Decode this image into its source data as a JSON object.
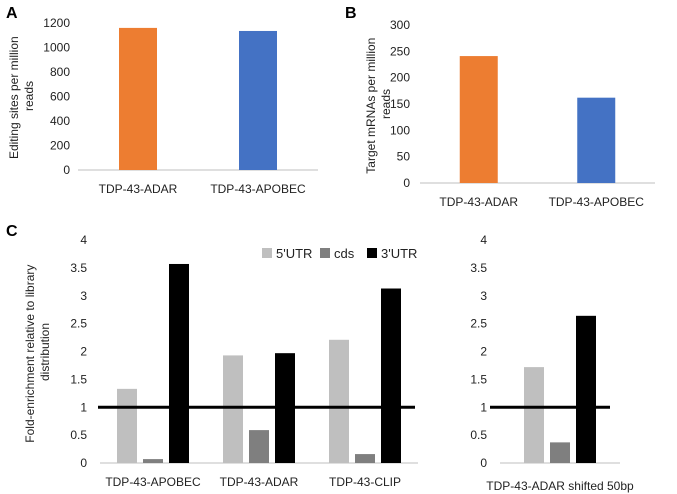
{
  "panels": {
    "A": "A",
    "B": "B",
    "C": "C"
  },
  "colors": {
    "adar": "#ED7D31",
    "apobec": "#4472C4",
    "utr5": "#BFBFBF",
    "cds": "#7F7F7F",
    "utr3": "#000000",
    "axis": "#BFBFBF"
  },
  "chart_data": [
    {
      "id": "A",
      "type": "bar",
      "ylabel_lines": [
        "Editing sites per million",
        "reads"
      ],
      "categories": [
        "TDP-43-ADAR",
        "TDP-43-APOBEC"
      ],
      "values": [
        1160,
        1135
      ],
      "ylim": [
        0,
        1200
      ],
      "yticks": [
        "0",
        "200",
        "400",
        "600",
        "800",
        "1000",
        "1200"
      ]
    },
    {
      "id": "B",
      "type": "bar",
      "ylabel_lines": [
        "Target mRNAs per million",
        "reads"
      ],
      "categories": [
        "TDP-43-ADAR",
        "TDP-43-APOBEC"
      ],
      "values": [
        241,
        162
      ],
      "ylim": [
        0,
        300
      ],
      "yticks": [
        "0",
        "50",
        "100",
        "150",
        "200",
        "250",
        "300"
      ]
    },
    {
      "id": "C1",
      "type": "bar",
      "ylabel_lines": [
        "Fold-enrichment relative to library",
        "distribution"
      ],
      "categories": [
        "TDP-43-APOBEC",
        "TDP-43-ADAR",
        "TDP-43-CLIP"
      ],
      "series": [
        {
          "name": "5'UTR",
          "values": [
            1.33,
            1.93,
            2.21
          ]
        },
        {
          "name": "cds",
          "values": [
            0.07,
            0.59,
            0.16
          ]
        },
        {
          "name": "3'UTR",
          "values": [
            3.57,
            1.97,
            3.13
          ]
        }
      ],
      "ylim": [
        0,
        4
      ],
      "yticks": [
        "0",
        "0.5",
        "1",
        "1.5",
        "2",
        "2.5",
        "3",
        "3.5",
        "4"
      ],
      "reference_line": 1,
      "legend": "top-right"
    },
    {
      "id": "C2",
      "type": "bar",
      "categories": [
        "TDP-43-ADAR shifted 50bp"
      ],
      "series": [
        {
          "name": "5'UTR",
          "values": [
            1.72
          ]
        },
        {
          "name": "cds",
          "values": [
            0.37
          ]
        },
        {
          "name": "3'UTR",
          "values": [
            2.64
          ]
        }
      ],
      "ylim": [
        0,
        4
      ],
      "yticks": [
        "0",
        "0.5",
        "1",
        "1.5",
        "2",
        "2.5",
        "3",
        "3.5",
        "4"
      ],
      "reference_line": 1
    }
  ]
}
